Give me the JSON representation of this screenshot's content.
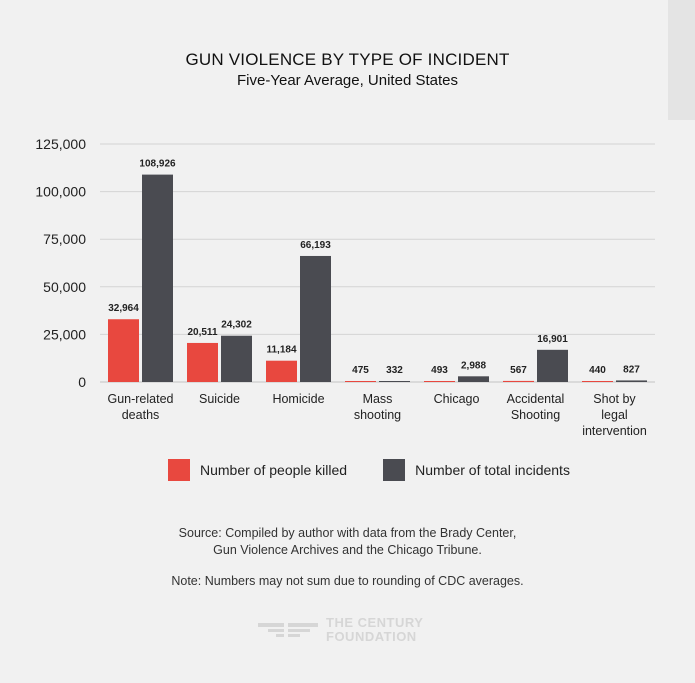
{
  "title": "GUN VIOLENCE BY TYPE OF INCIDENT",
  "subtitle": "Five-Year Average, United States",
  "chart_data": {
    "type": "bar",
    "title": "GUN VIOLENCE BY TYPE OF INCIDENT",
    "subtitle": "Five-Year Average, United States",
    "xlabel": "",
    "ylabel": "",
    "ylim": [
      0,
      125000
    ],
    "yticks": [
      0,
      25000,
      50000,
      75000,
      100000,
      125000
    ],
    "ytick_labels": [
      "0",
      "25,000",
      "50,000",
      "75,000",
      "100,000",
      "125,000"
    ],
    "grid": true,
    "categories": [
      [
        "Gun-related",
        "deaths"
      ],
      [
        "Suicide"
      ],
      [
        "Homicide"
      ],
      [
        "Mass",
        "shooting"
      ],
      [
        "Chicago"
      ],
      [
        "Accidental",
        "Shooting"
      ],
      [
        "Shot by",
        "legal",
        "intervention"
      ]
    ],
    "series": [
      {
        "name": "Number of people killed",
        "color": "#e8483f",
        "values": [
          32964,
          20511,
          11184,
          475,
          493,
          567,
          440
        ],
        "labels": [
          "32,964",
          "20,511",
          "11,184",
          "475",
          "493",
          "567",
          "440"
        ]
      },
      {
        "name": "Number of total incidents",
        "color": "#4a4b51",
        "values": [
          108926,
          24302,
          66193,
          332,
          2988,
          16901,
          827
        ],
        "labels": [
          "108,926",
          "24,302",
          "66,193",
          "332",
          "2,988",
          "16,901",
          "827"
        ]
      }
    ],
    "legend_position": "bottom"
  },
  "legend": {
    "killed_label": "Number of people killed",
    "incidents_label": "Number of total incidents",
    "killed_color": "#e8483f",
    "incidents_color": "#4a4b51"
  },
  "source": {
    "line1": "Source: Compiled by author with data from the Brady Center,",
    "line2": "Gun Violence Archives and the Chicago Tribune."
  },
  "note": "Note: Numbers may not sum due to rounding of CDC averages.",
  "logo": {
    "line1": "THE CENTURY",
    "line2": "FOUNDATION"
  }
}
